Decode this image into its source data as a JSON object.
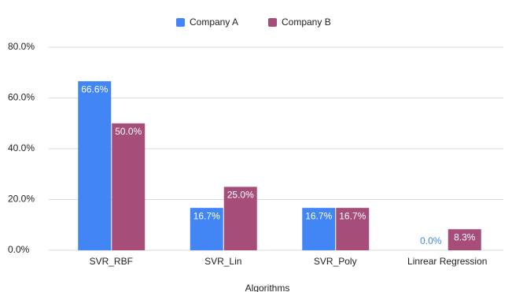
{
  "chart_data": {
    "type": "bar",
    "x_label": "Algorithms",
    "categories": [
      "SVR_RBF",
      "SVR_Lin",
      "SVR_Poly",
      "Linrear Regression"
    ],
    "series": [
      {
        "name": "Company A",
        "color": "#4285f4",
        "values": [
          66.6,
          16.7,
          16.7,
          0.0
        ],
        "value_labels": [
          "66.6%",
          "16.7%",
          "16.7%",
          "0.0%"
        ]
      },
      {
        "name": "Company B",
        "color": "#a64d79",
        "values": [
          50.0,
          25.0,
          16.7,
          8.3
        ],
        "value_labels": [
          "50.0%",
          "25.0%",
          "16.7%",
          "8.3%"
        ]
      }
    ],
    "ylim": [
      0,
      80
    ],
    "yticks": [
      {
        "value": 0,
        "label": "0.0%"
      },
      {
        "value": 20,
        "label": "20.0%"
      },
      {
        "value": 40,
        "label": "40.0%"
      },
      {
        "value": 60,
        "label": "60.0%"
      },
      {
        "value": 80,
        "label": "80.0%"
      }
    ],
    "grid": true,
    "legend": "top"
  }
}
